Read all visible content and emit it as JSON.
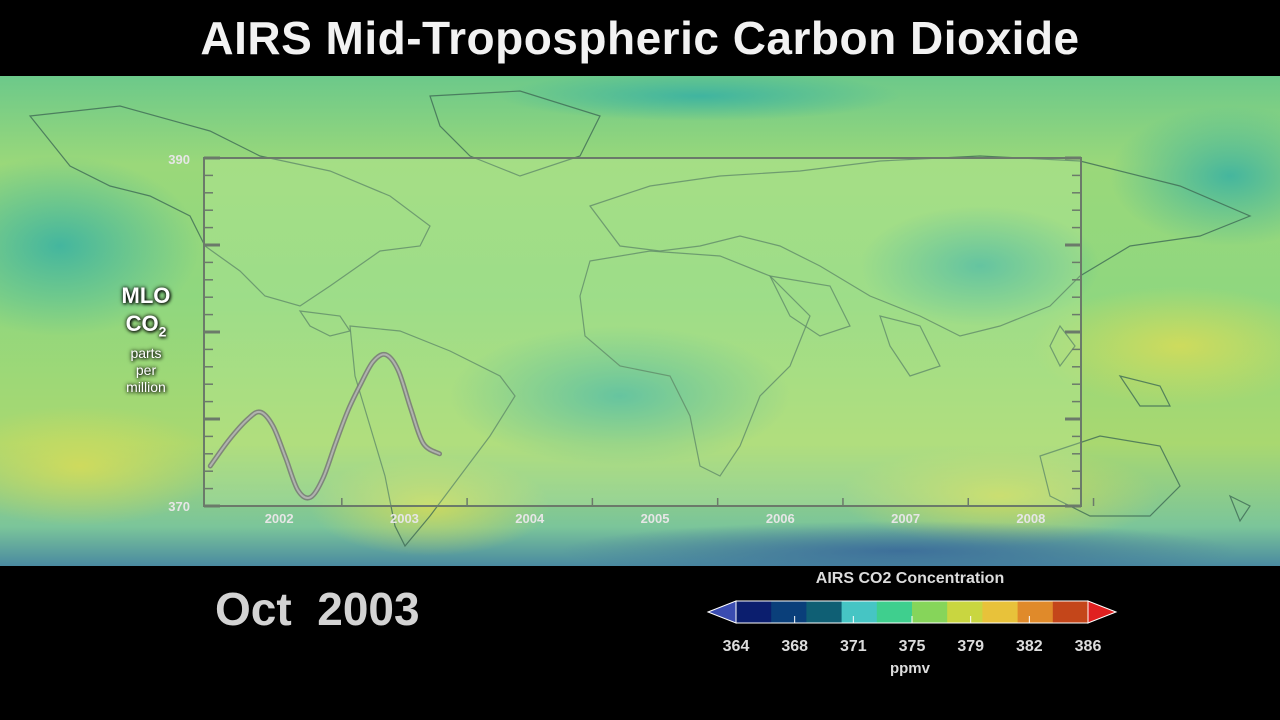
{
  "title": "AIRS Mid-Tropospheric Carbon Dioxide",
  "date": "Oct  2003",
  "overlay": {
    "label_line1": "MLO",
    "label_co": "CO",
    "label_sub": "2",
    "label_parts": "parts",
    "label_per": "per",
    "label_million": "million",
    "y_max_label": "390",
    "y_min_label": "370",
    "x_labels": [
      "2002",
      "2003",
      "2004",
      "2005",
      "2006",
      "2007",
      "2008"
    ]
  },
  "colorbar": {
    "title": "AIRS CO2 Concentration",
    "units": "ppmv",
    "ticks": [
      "364",
      "368",
      "371",
      "375",
      "379",
      "382",
      "386"
    ],
    "colors": [
      "#0b1e6e",
      "#0a3f7a",
      "#0f5f74",
      "#46c5c4",
      "#3fcf8e",
      "#86d55a",
      "#c9d640",
      "#e8c23a",
      "#e08a2a",
      "#c4461a"
    ],
    "low_arrow_color": "#3a4cb0",
    "high_arrow_color": "#e02020"
  },
  "chart_data": {
    "type": "line",
    "title": "",
    "xlabel": "",
    "ylabel": "MLO CO2 parts per million",
    "ylim": [
      370,
      390
    ],
    "xlim": [
      2001.4,
      2008.4
    ],
    "series": [
      {
        "x": [
          2001.45,
          2001.6,
          2001.75,
          2001.85,
          2001.95,
          2002.05,
          2002.15,
          2002.25,
          2002.35,
          2002.45,
          2002.55,
          2002.65,
          2002.75,
          2002.85,
          2002.95,
          2003.05,
          2003.15,
          2003.28
        ],
        "values": [
          372.3,
          373.8,
          375.0,
          375.4,
          374.6,
          372.8,
          370.9,
          370.5,
          371.6,
          373.6,
          375.5,
          377.0,
          378.3,
          378.7,
          377.8,
          375.6,
          373.6,
          373.0
        ]
      }
    ]
  }
}
